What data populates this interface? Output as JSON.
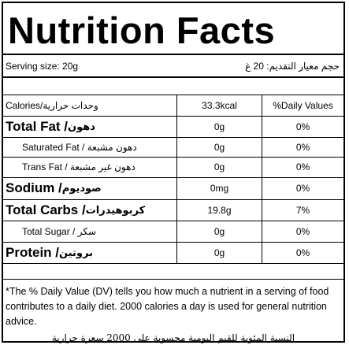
{
  "title": "Nutrition Facts",
  "serving": {
    "en": "Serving size: 20g",
    "ar": "حجم معيار التقديم: 20 غ"
  },
  "header": {
    "nutrient": "Calories/وحدات حرارية",
    "amount": "33.3kcal",
    "dv": "%Daily Values"
  },
  "rows": [
    {
      "label": "Total Fat / ",
      "label_ar": "دهون",
      "amount": "0g",
      "dv": "0%",
      "style": "big"
    },
    {
      "label": "Saturated Fat / دهون مشبعة",
      "amount": "0g",
      "dv": "0%",
      "style": "sub"
    },
    {
      "label": "Trans Fat / دهون غير مشبعة",
      "amount": "0g",
      "dv": "0%",
      "style": "sub"
    },
    {
      "label": "Sodium / ",
      "label_ar": "صوديوم",
      "amount": "0mg",
      "dv": "0%",
      "style": "big"
    },
    {
      "label": "Total Carbs / ",
      "label_ar": "كربوهيدرات",
      "amount": "19.8g",
      "dv": "7%",
      "style": "big"
    },
    {
      "label": "Total Sugar / سكر",
      "amount": "0g",
      "dv": "0%",
      "style": "sub"
    },
    {
      "label": "Protein / ",
      "label_ar": "بروتين",
      "amount": "0g",
      "dv": "0%",
      "style": "big"
    }
  ],
  "footnote": {
    "en": "*The % Daily Value (DV) tells you how much a nutrient in a serving of food contributes to a daily diet. 2000 calories a day is used for general nutrition advice.",
    "ar": "النسبة المئوية للقيم اليومية محسوبة على 2000 سعرة حرارية"
  }
}
